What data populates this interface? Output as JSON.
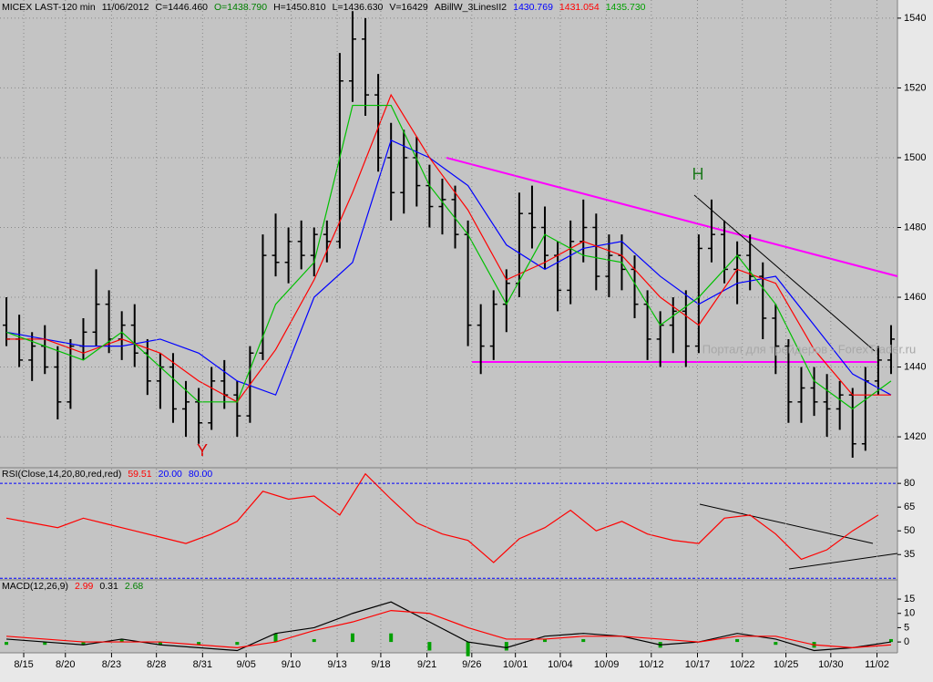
{
  "chart_data": [
    {
      "type": "ohlc",
      "header": [
        {
          "text": "MICEX LAST-120 min",
          "color": "#000000"
        },
        {
          "text": "11/06/2012",
          "color": "#000000"
        },
        {
          "text": "C=1446.460",
          "color": "#000000"
        },
        {
          "text": "O=1438.790",
          "color": "#008000"
        },
        {
          "text": "H=1450.810",
          "color": "#000000"
        },
        {
          "text": "L=1436.630",
          "color": "#000000"
        },
        {
          "text": "V=16429",
          "color": "#000000"
        },
        {
          "text": "ABillW_3LinesII2",
          "color": "#000000"
        },
        {
          "text": "1430.769",
          "color": "#0000ff"
        },
        {
          "text": "1431.054",
          "color": "#ff0000"
        },
        {
          "text": "1435.730",
          "color": "#00a000"
        }
      ],
      "annotations": [
        {
          "text": "Y",
          "color": "#e00000"
        },
        {
          "text": "H",
          "color": "#207a20"
        },
        {
          "text": "Портал для трейдеров - ForexTrader.ru",
          "color": "#a8a8a8"
        }
      ],
      "xlim": [
        -0.5,
        69.5
      ],
      "ylim": [
        1411.4,
        1545.2
      ],
      "yticks": [
        1420,
        1440,
        1460,
        1480,
        1500,
        1520,
        1540
      ],
      "grid": true,
      "open": [
        1452,
        1448,
        1442,
        1446,
        1440,
        1430,
        1446,
        1450,
        1458,
        1448,
        1452,
        1444,
        1436,
        1440,
        1428,
        1430,
        1424,
        1436,
        1432,
        1426,
        1444,
        1472,
        1470,
        1476,
        1472,
        1478,
        1476,
        1522,
        1534,
        1518,
        1500,
        1490,
        1500,
        1492,
        1486,
        1488,
        1478,
        1452,
        1446,
        1458,
        1464,
        1484,
        1480,
        1472,
        1462,
        1476,
        1480,
        1466,
        1472,
        1468,
        1458,
        1448,
        1452,
        1456,
        1446,
        1474,
        1478,
        1468,
        1472,
        1466,
        1454,
        1446,
        1430,
        1434,
        1430,
        1428,
        1432,
        1418,
        1436,
        1442
      ],
      "high": [
        1460,
        1455,
        1450,
        1452,
        1446,
        1448,
        1454,
        1468,
        1462,
        1456,
        1458,
        1448,
        1444,
        1444,
        1436,
        1434,
        1440,
        1442,
        1436,
        1446,
        1478,
        1484,
        1480,
        1482,
        1480,
        1482,
        1530,
        1542,
        1540,
        1524,
        1510,
        1508,
        1506,
        1498,
        1494,
        1492,
        1482,
        1458,
        1462,
        1468,
        1490,
        1492,
        1486,
        1476,
        1482,
        1488,
        1484,
        1478,
        1478,
        1472,
        1462,
        1456,
        1460,
        1462,
        1478,
        1488,
        1482,
        1476,
        1478,
        1470,
        1458,
        1448,
        1440,
        1440,
        1438,
        1436,
        1434,
        1440,
        1446,
        1452
      ],
      "low": [
        1446,
        1440,
        1436,
        1438,
        1425,
        1428,
        1442,
        1446,
        1444,
        1442,
        1440,
        1432,
        1428,
        1424,
        1420,
        1418,
        1422,
        1428,
        1420,
        1424,
        1442,
        1466,
        1464,
        1468,
        1466,
        1470,
        1474,
        1516,
        1512,
        1496,
        1482,
        1484,
        1486,
        1480,
        1478,
        1474,
        1446,
        1438,
        1442,
        1450,
        1460,
        1474,
        1468,
        1456,
        1458,
        1470,
        1462,
        1460,
        1462,
        1454,
        1442,
        1440,
        1444,
        1440,
        1444,
        1470,
        1464,
        1458,
        1462,
        1448,
        1438,
        1424,
        1424,
        1426,
        1420,
        1422,
        1414,
        1416,
        1432,
        1438
      ],
      "close": [
        1448,
        1442,
        1446,
        1440,
        1430,
        1446,
        1450,
        1458,
        1448,
        1452,
        1444,
        1436,
        1440,
        1428,
        1430,
        1424,
        1436,
        1432,
        1426,
        1444,
        1472,
        1470,
        1476,
        1472,
        1478,
        1476,
        1522,
        1534,
        1518,
        1500,
        1490,
        1500,
        1492,
        1486,
        1488,
        1478,
        1452,
        1446,
        1458,
        1464,
        1484,
        1480,
        1472,
        1462,
        1476,
        1480,
        1466,
        1472,
        1468,
        1458,
        1448,
        1452,
        1456,
        1446,
        1474,
        1478,
        1468,
        1472,
        1466,
        1454,
        1446,
        1430,
        1434,
        1430,
        1428,
        1432,
        1418,
        1436,
        1442,
        1448
      ],
      "series": [
        {
          "name": "1430.769",
          "color": "#0000ff",
          "x": [
            0,
            3,
            6,
            9,
            12,
            15,
            18,
            21,
            24,
            27,
            30,
            33,
            36,
            39,
            42,
            45,
            48,
            51,
            54,
            57,
            60,
            63,
            66,
            69
          ],
          "values": [
            1450,
            1448,
            1446,
            1446,
            1448,
            1444,
            1436,
            1432,
            1460,
            1470,
            1505,
            1500,
            1492,
            1475,
            1468,
            1474,
            1476,
            1466,
            1458,
            1464,
            1466,
            1452,
            1438,
            1432
          ]
        },
        {
          "name": "1431.054",
          "color": "#ff0000",
          "x": [
            0,
            3,
            6,
            9,
            12,
            15,
            18,
            21,
            24,
            27,
            30,
            33,
            36,
            39,
            42,
            45,
            48,
            51,
            54,
            57,
            60,
            63,
            66,
            69
          ],
          "values": [
            1448,
            1448,
            1444,
            1448,
            1444,
            1436,
            1430,
            1445,
            1465,
            1490,
            1518,
            1500,
            1485,
            1465,
            1470,
            1476,
            1472,
            1460,
            1452,
            1468,
            1464,
            1445,
            1432,
            1432
          ]
        },
        {
          "name": "1435.730",
          "color": "#00c000",
          "x": [
            0,
            3,
            6,
            9,
            12,
            15,
            18,
            21,
            24,
            27,
            30,
            33,
            36,
            39,
            42,
            45,
            48,
            51,
            54,
            57,
            60,
            63,
            66,
            69
          ],
          "values": [
            1450,
            1446,
            1442,
            1450,
            1440,
            1430,
            1430,
            1458,
            1470,
            1515,
            1515,
            1492,
            1478,
            1458,
            1478,
            1472,
            1470,
            1452,
            1460,
            1472,
            1458,
            1436,
            1428,
            1436
          ]
        }
      ]
    },
    {
      "type": "line",
      "header": [
        {
          "text": "RSI(Close,14,20,80,red,red)",
          "color": "#000000"
        },
        {
          "text": "59.51",
          "color": "#ff0000"
        },
        {
          "text": "20.00",
          "color": "#0000ff"
        },
        {
          "text": "80.00",
          "color": "#0000ff"
        }
      ],
      "xlim": [
        -0.5,
        69.5
      ],
      "ylim": [
        19,
        89.3
      ],
      "yticks": [
        35,
        50,
        65,
        80
      ],
      "levels": [
        80,
        20
      ],
      "level_color": "#0000ff",
      "series": [
        {
          "name": "RSI",
          "color": "#ff0000",
          "x": [
            0,
            2,
            4,
            6,
            8,
            10,
            12,
            14,
            16,
            18,
            20,
            22,
            24,
            26,
            28,
            30,
            32,
            34,
            36,
            38,
            40,
            42,
            44,
            46,
            48,
            50,
            52,
            54,
            56,
            58,
            60,
            62,
            64,
            66,
            68
          ],
          "values": [
            58,
            55,
            52,
            58,
            54,
            50,
            46,
            42,
            48,
            56,
            75,
            70,
            72,
            60,
            86,
            70,
            55,
            48,
            44,
            30,
            45,
            52,
            63,
            50,
            56,
            48,
            44,
            42,
            58,
            60,
            48,
            32,
            38,
            50,
            60
          ]
        }
      ]
    },
    {
      "type": "macd",
      "header": [
        {
          "text": "MACD(12,26,9)",
          "color": "#000000"
        },
        {
          "text": "2.99",
          "color": "#ff0000"
        },
        {
          "text": "0.31",
          "color": "#000000"
        },
        {
          "text": "2.68",
          "color": "#008000"
        }
      ],
      "xlim": [
        -0.5,
        69.5
      ],
      "ylim": [
        -3.8,
        21.4
      ],
      "yticks": [
        0,
        5,
        10,
        15
      ],
      "xticks": [
        {
          "value": 1.35,
          "label": "8/15"
        },
        {
          "value": 4.6,
          "label": "8/20"
        },
        {
          "value": 8.2,
          "label": "8/23"
        },
        {
          "value": 11.7,
          "label": "8/28"
        },
        {
          "value": 15.3,
          "label": "8/31"
        },
        {
          "value": 18.7,
          "label": "9/05"
        },
        {
          "value": 22.2,
          "label": "9/10"
        },
        {
          "value": 25.8,
          "label": "9/13"
        },
        {
          "value": 29.2,
          "label": "9/18"
        },
        {
          "value": 32.8,
          "label": "9/21"
        },
        {
          "value": 36.3,
          "label": "9/26"
        },
        {
          "value": 39.7,
          "label": "10/01"
        },
        {
          "value": 43.2,
          "label": "10/04"
        },
        {
          "value": 46.8,
          "label": "10/09"
        },
        {
          "value": 50.3,
          "label": "10/12"
        },
        {
          "value": 53.9,
          "label": "10/17"
        },
        {
          "value": 57.4,
          "label": "10/22"
        },
        {
          "value": 60.8,
          "label": "10/25"
        },
        {
          "value": 64.3,
          "label": "10/30"
        },
        {
          "value": 67.9,
          "label": "11/02"
        }
      ],
      "series": [
        {
          "name": "Histogram",
          "type": "bar",
          "color": "#00a000",
          "x": [
            0,
            3,
            6,
            9,
            12,
            15,
            18,
            21,
            24,
            27,
            30,
            33,
            36,
            39,
            42,
            45,
            48,
            51,
            54,
            57,
            60,
            63,
            66,
            69
          ],
          "values": [
            -1,
            -1,
            -1,
            1,
            -1,
            -1,
            -1,
            3,
            1,
            3,
            3,
            -3,
            -5,
            -3,
            1,
            1,
            0,
            -2,
            0,
            1,
            -1,
            -2,
            0,
            1
          ]
        },
        {
          "name": "MACD",
          "color": "#000000",
          "x": [
            0,
            3,
            6,
            9,
            12,
            15,
            18,
            21,
            24,
            27,
            30,
            33,
            36,
            39,
            42,
            45,
            48,
            51,
            54,
            57,
            60,
            63,
            66,
            69
          ],
          "values": [
            1,
            0,
            -1,
            1,
            -1,
            -2,
            -3,
            3,
            5,
            10,
            14,
            7,
            0,
            -2,
            2,
            3,
            2,
            -1,
            0,
            3,
            1,
            -3,
            -2,
            0
          ]
        },
        {
          "name": "Signal",
          "color": "#ff0000",
          "x": [
            0,
            3,
            6,
            9,
            12,
            15,
            18,
            21,
            24,
            27,
            30,
            33,
            36,
            39,
            42,
            45,
            48,
            51,
            54,
            57,
            60,
            63,
            66,
            69
          ],
          "values": [
            2,
            1,
            0,
            0,
            0,
            -1,
            -2,
            0,
            4,
            7,
            11,
            10,
            5,
            1,
            1,
            2,
            2,
            1,
            0,
            2,
            2,
            -1,
            -2,
            -1
          ]
        }
      ]
    }
  ]
}
